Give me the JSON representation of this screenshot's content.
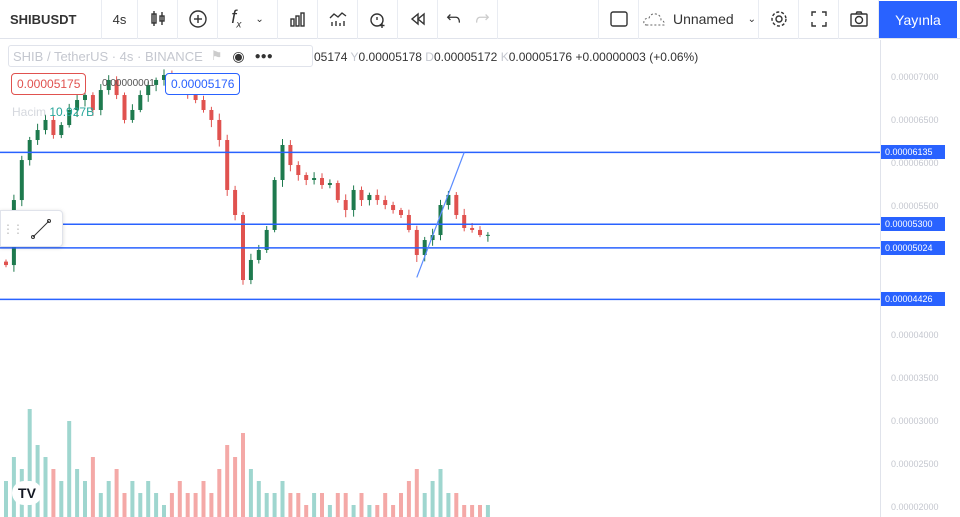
{
  "toolbar": {
    "symbol": "SHIBUSDT",
    "interval": "4s",
    "layout_name": "Unnamed",
    "publish": "Yayınla",
    "icons": [
      "candles-icon",
      "add-compare-icon",
      "indicators-icon",
      "chevron-down-icon",
      "bar-chart-icon",
      "templates-icon",
      "alert-icon",
      "replay-icon",
      "undo-icon",
      "redo-icon",
      "rectangle-icon",
      "cloud-icon",
      "chevron-down-icon",
      "gear-icon",
      "fullscreen-icon",
      "camera-icon"
    ]
  },
  "legend": {
    "title": "SHIB / TetherUS · 4s · BINANCE",
    "open_partial": "05174",
    "h_label": "Y",
    "high": "0.00005178",
    "l_label": "D",
    "low": "0.00005172",
    "c_label": "K",
    "close": "0.00005176",
    "change": "+0.00000003 (+0.06%)",
    "bid": "0.00005175",
    "spread": "0.00000001",
    "ask": "0.00005176",
    "volume_label": "Hacim",
    "volume": "10.927B"
  },
  "axis": {
    "ticks": [
      "0.00007000",
      "0.00006500",
      "0.00006000",
      "0.00005500",
      "0.00004000",
      "0.00003500",
      "0.00003000",
      "0.00002500",
      "0.00002000"
    ],
    "levels": [
      "0.00006135",
      "0.00005300",
      "0.00005024",
      "0.00004426"
    ]
  },
  "colors": {
    "up": "#1e7a4e",
    "down": "#e0524f",
    "line": "#2962ff",
    "up_vol": "#9fd6cf",
    "down_vol": "#f4a9a7"
  },
  "chart_data": {
    "type": "candlestick",
    "ylim": [
      2e-05,
      7.15e-05
    ],
    "closes": [
      4825,
      5581,
      6046,
      6279,
      6395,
      6512,
      6337,
      6453,
      6628,
      6744,
      6802,
      6628,
      6860,
      6977,
      6802,
      6512,
      6628,
      6802,
      6919,
      6977,
      7035,
      6919,
      6860,
      6802,
      6744,
      6628,
      6512,
      6279,
      5698,
      5407,
      4651,
      4884,
      5000,
      5233,
      5814,
      6221,
      5988,
      5872,
      5814,
      5837,
      5756,
      5779,
      5581,
      5465,
      5698,
      5581,
      5640,
      5581,
      5523,
      5465,
      5407,
      5233,
      4942,
      5116,
      5174,
      5523,
      5640,
      5407,
      5256,
      5233,
      5174,
      5176
    ],
    "volumes": [
      3,
      5,
      4,
      9,
      6,
      5,
      4,
      3,
      8,
      4,
      3,
      5,
      2,
      3,
      4,
      2,
      3,
      2,
      3,
      2,
      1,
      2,
      3,
      2,
      2,
      3,
      2,
      4,
      6,
      5,
      7,
      4,
      3,
      2,
      2,
      3,
      2,
      2,
      1,
      2,
      2,
      1,
      2,
      2,
      1,
      2,
      1,
      1,
      2,
      1,
      2,
      3,
      4,
      2,
      3,
      4,
      2,
      2,
      1,
      1,
      1,
      1
    ],
    "levels": [
      6.135e-05,
      5.3e-05,
      5.024e-05,
      4.426e-05
    ],
    "trend_line": [
      {
        "index": 52,
        "price": 4.681e-05
      },
      {
        "index": 58,
        "price": 6.135e-05
      }
    ]
  },
  "logo": "TV"
}
